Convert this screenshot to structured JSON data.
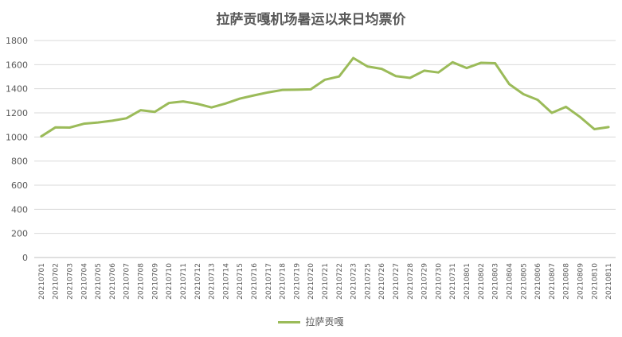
{
  "chart_data": {
    "type": "line",
    "title": "拉萨贡嘎机场暑运以来日均票价",
    "xlabel": "",
    "ylabel": "",
    "ylim": [
      0,
      1800
    ],
    "yticks": [
      0,
      200,
      400,
      600,
      800,
      1000,
      1200,
      1400,
      1600,
      1800
    ],
    "grid": true,
    "legend_position": "bottom",
    "categories": [
      "20210701",
      "20210702",
      "20210703",
      "20210704",
      "20210705",
      "20210706",
      "20210707",
      "20210708",
      "20210709",
      "20210710",
      "20210711",
      "20210712",
      "20210713",
      "20210714",
      "20210715",
      "20210716",
      "20210717",
      "20210718",
      "20210719",
      "20210720",
      "20210721",
      "20210722",
      "20210723",
      "20210725",
      "20210726",
      "20210727",
      "20210728",
      "20210729",
      "20210730",
      "20210731",
      "20210801",
      "20210802",
      "20210803",
      "20210804",
      "20210805",
      "20210806",
      "20210807",
      "20210808",
      "20210809",
      "20210810",
      "20210811"
    ],
    "series": [
      {
        "name": "拉萨贡嘎",
        "color": "#9bbb59",
        "values": [
          1005,
          1080,
          1078,
          1110,
          1120,
          1135,
          1155,
          1222,
          1208,
          1282,
          1295,
          1275,
          1245,
          1278,
          1318,
          1345,
          1370,
          1390,
          1392,
          1395,
          1475,
          1502,
          1655,
          1585,
          1565,
          1505,
          1490,
          1550,
          1535,
          1620,
          1572,
          1615,
          1612,
          1438,
          1355,
          1308,
          1200,
          1250,
          1165,
          1065,
          1082
        ]
      }
    ]
  }
}
